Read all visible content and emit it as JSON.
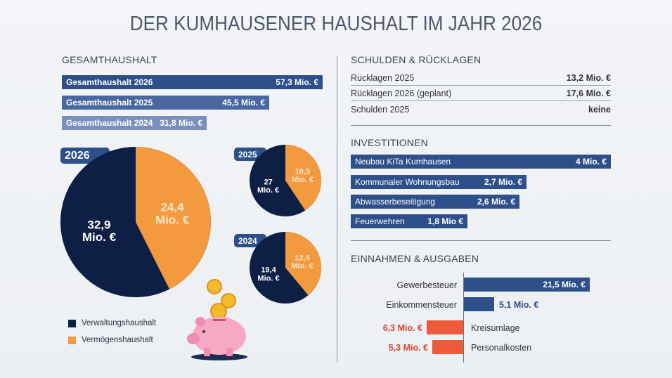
{
  "title": "DER KUMHAUSENER HAUSHALT IM JAHR 2026",
  "colors": {
    "navy": "#0d1f44",
    "orange": "#f39a3f",
    "blue": "#2d4f8a",
    "red": "#f05a3c"
  },
  "gesamt": {
    "heading": "GESAMTHAUSHALT",
    "bars": [
      {
        "label": "Gesamthaushalt 2026",
        "value_text": "57,3 Mio. €"
      },
      {
        "label": "Gesamthaushalt 2025",
        "value_text": "45,5 Mio. €"
      },
      {
        "label": "Gesamthaushalt 2024",
        "value_text": "31,8 Mio. €"
      }
    ]
  },
  "pies": [
    {
      "year": "2026",
      "navy_text": [
        "32,9",
        "Mio. €"
      ],
      "orange_text": [
        "24,4",
        "Mio. €"
      ]
    },
    {
      "year": "2025",
      "navy_text": [
        "27",
        "Mio. €"
      ],
      "orange_text": [
        "18,5",
        "Mio. €"
      ]
    },
    {
      "year": "2024",
      "navy_text": [
        "19,4",
        "Mio. €"
      ],
      "orange_text": [
        "12,4",
        "Mio. €"
      ]
    }
  ],
  "legend": {
    "items": [
      "Verwaltungshaushalt",
      "Vermögenshaushalt"
    ]
  },
  "schulden": {
    "heading": "SCHULDEN & RÜCKLAGEN",
    "rows": [
      {
        "label": "Rücklagen 2025",
        "value": "13,2 Mio. €"
      },
      {
        "label": "Rücklagen 2026 (geplant)",
        "value": "17,6 Mio. €"
      },
      {
        "label": "Schulden 2025",
        "value": "keine"
      }
    ]
  },
  "invest": {
    "heading": "INVESTITIONEN",
    "bars": [
      {
        "label": "Neubau KiTa Kumhausen",
        "value_text": "4 Mio. €"
      },
      {
        "label": "Kommunaler Wohnungsbau",
        "value_text": "2,7 Mio. €"
      },
      {
        "label": "Abwasserbeseitigung",
        "value_text": "2,6 Mio. €"
      },
      {
        "label": "Feuerwehren",
        "value_text": "1,8 Mio €"
      }
    ]
  },
  "einaus": {
    "heading": "EINNAHMEN & AUSGABEN",
    "items": [
      {
        "label": "Gewerbesteuer",
        "value_text": "21,5 Mio. €"
      },
      {
        "label": "Einkommensteuer",
        "value_text": "5,1 Mio. €"
      },
      {
        "label": "Kreisumlage",
        "value_text": "6,3 Mio. €"
      },
      {
        "label": "Personalkosten",
        "value_text": "5,3 Mio. €"
      }
    ]
  },
  "chart_data": [
    {
      "type": "bar",
      "title": "GESAMTHAUSHALT",
      "categories": [
        "Gesamthaushalt 2026",
        "Gesamthaushalt 2025",
        "Gesamthaushalt 2024"
      ],
      "values": [
        57.3,
        45.5,
        31.8
      ],
      "unit": "Mio. €"
    },
    {
      "type": "pie",
      "title": "2026",
      "categories": [
        "Verwaltungshaushalt",
        "Vermögenshaushalt"
      ],
      "values": [
        32.9,
        24.4
      ]
    },
    {
      "type": "pie",
      "title": "2025",
      "categories": [
        "Verwaltungshaushalt",
        "Vermögenshaushalt"
      ],
      "values": [
        27,
        18.5
      ]
    },
    {
      "type": "pie",
      "title": "2024",
      "categories": [
        "Verwaltungshaushalt",
        "Vermögenshaushalt"
      ],
      "values": [
        19.4,
        12.4
      ]
    },
    {
      "type": "bar",
      "title": "INVESTITIONEN",
      "categories": [
        "Neubau KiTa Kumhausen",
        "Kommunaler Wohnungsbau",
        "Abwasserbeseitigung",
        "Feuerwehren"
      ],
      "values": [
        4,
        2.7,
        2.6,
        1.8
      ],
      "unit": "Mio. €"
    },
    {
      "type": "bar",
      "title": "EINNAHMEN & AUSGABEN",
      "categories": [
        "Gewerbesteuer",
        "Einkommensteuer",
        "Kreisumlage",
        "Personalkosten"
      ],
      "values": [
        21.5,
        5.1,
        -6.3,
        -5.3
      ],
      "unit": "Mio. €"
    }
  ]
}
